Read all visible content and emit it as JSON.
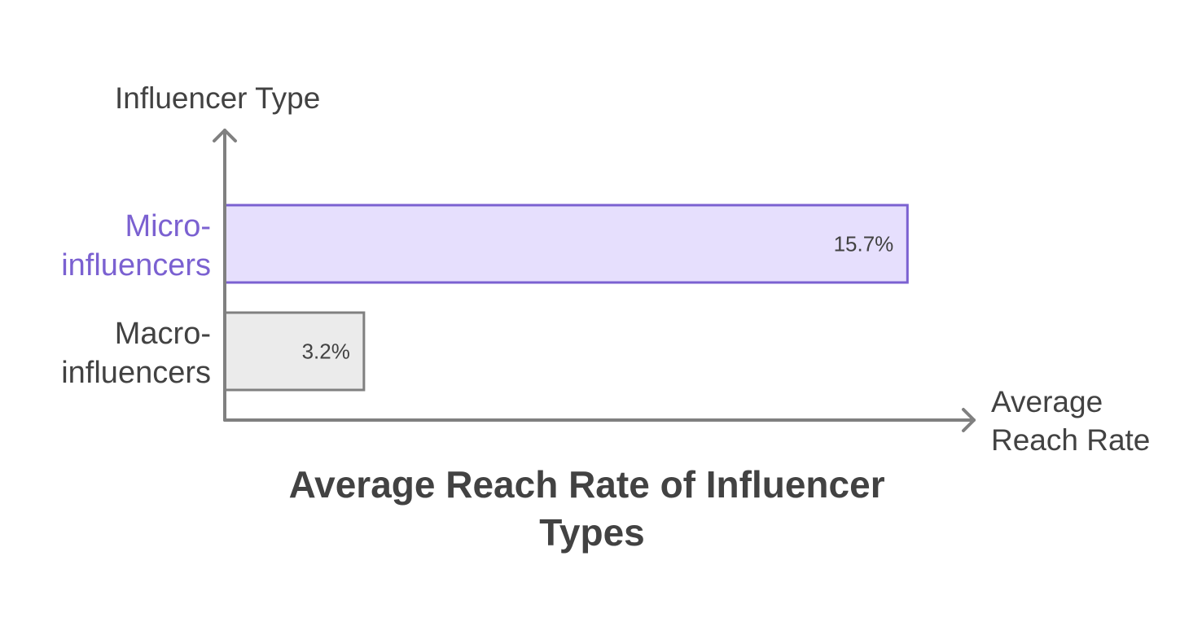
{
  "chart_data": {
    "type": "bar",
    "orientation": "horizontal",
    "title": [
      "Average Reach Rate of Influencer",
      "Types"
    ],
    "ylabel": "Influencer Type",
    "xlabel": [
      "Average",
      "Reach Rate"
    ],
    "categories": [
      [
        "Micro-",
        "influencers"
      ],
      [
        "Macro-",
        "influencers"
      ]
    ],
    "values": [
      15.7,
      3.2
    ],
    "value_labels": [
      "15.7%",
      "3.2%"
    ],
    "unit": "%",
    "xlim": [
      0,
      16.2
    ],
    "grid": false,
    "legend": "none"
  },
  "colors": {
    "axis": "#808080",
    "text": "#424242",
    "bars": [
      {
        "fill": "#E6DFFD",
        "stroke": "#7B61D1",
        "label": "#7B61D1"
      },
      {
        "fill": "#EBEBEB",
        "stroke": "#808080",
        "label": "#424242"
      }
    ]
  }
}
